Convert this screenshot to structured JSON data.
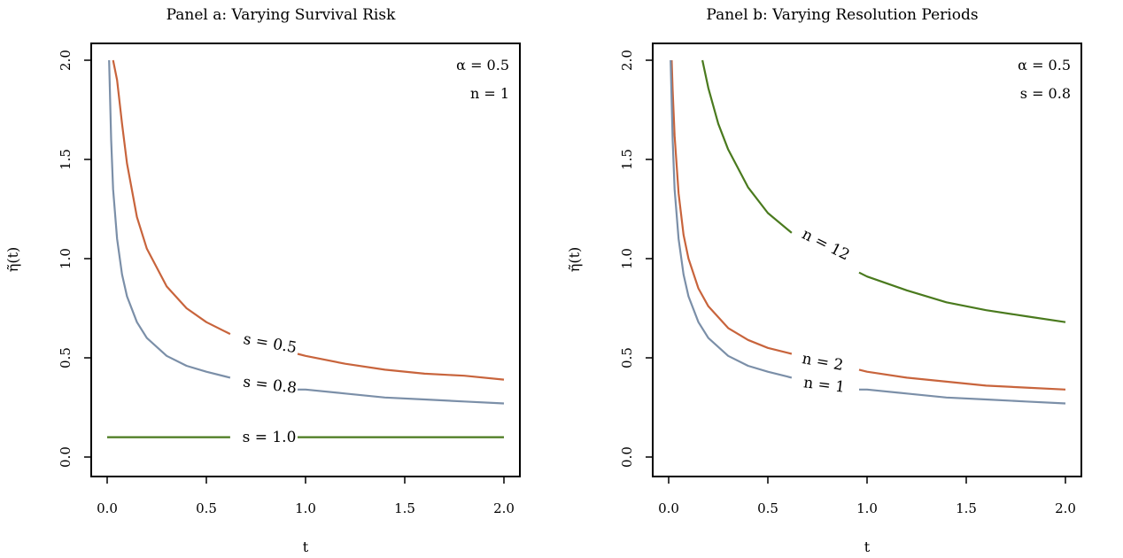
{
  "chart_data": [
    {
      "type": "line",
      "title": "Panel a: Varying Survival Risk",
      "xlabel": "t",
      "ylabel": "η̃(t)",
      "xlim": [
        0.0,
        2.0
      ],
      "ylim": [
        0.0,
        2.0
      ],
      "x_ticks": [
        "0.0",
        "0.5",
        "1.0",
        "1.5",
        "2.0"
      ],
      "y_ticks": [
        "0.0",
        "0.5",
        "1.0",
        "1.5",
        "2.0"
      ],
      "annotations": [
        "α = 0.5",
        "n = 1"
      ],
      "series": [
        {
          "label": "s = 0.5",
          "color": "#c8643c",
          "x": [
            0.03,
            0.05,
            0.075,
            0.1,
            0.15,
            0.2,
            0.3,
            0.4,
            0.5,
            0.6,
            0.62,
            0.96,
            1.0,
            1.2,
            1.4,
            1.6,
            1.8,
            2.0
          ],
          "y": [
            2.0,
            1.9,
            1.68,
            1.48,
            1.21,
            1.05,
            0.86,
            0.75,
            0.68,
            0.63,
            0.62,
            0.52,
            0.51,
            0.47,
            0.44,
            0.42,
            0.41,
            0.39
          ]
        },
        {
          "label": "s = 0.8",
          "color": "#7b8fa8",
          "x": [
            0.01,
            0.02,
            0.03,
            0.05,
            0.075,
            0.1,
            0.15,
            0.2,
            0.3,
            0.4,
            0.5,
            0.62,
            0.96,
            1.0,
            1.2,
            1.4,
            1.6,
            1.8,
            2.0
          ],
          "y": [
            2.0,
            1.6,
            1.35,
            1.1,
            0.92,
            0.81,
            0.68,
            0.6,
            0.51,
            0.46,
            0.43,
            0.4,
            0.34,
            0.34,
            0.32,
            0.3,
            0.29,
            0.28,
            0.27
          ]
        },
        {
          "label": "s = 1.0",
          "color": "#4a7a1e",
          "x": [
            0.0,
            0.62,
            0.96,
            2.0
          ],
          "y": [
            0.1,
            0.1,
            0.1,
            0.1
          ]
        }
      ],
      "label_gap": [
        0.62,
        0.96
      ]
    },
    {
      "type": "line",
      "title": "Panel b: Varying Resolution Periods",
      "xlabel": "t",
      "ylabel": "η̃(t)",
      "xlim": [
        0.0,
        2.0
      ],
      "ylim": [
        0.0,
        2.0
      ],
      "x_ticks": [
        "0.0",
        "0.5",
        "1.0",
        "1.5",
        "2.0"
      ],
      "y_ticks": [
        "0.0",
        "0.5",
        "1.0",
        "1.5",
        "2.0"
      ],
      "annotations": [
        "α = 0.5",
        "s = 0.8"
      ],
      "series": [
        {
          "label": "n = 12",
          "color": "#4a7a1e",
          "x": [
            0.17,
            0.2,
            0.25,
            0.3,
            0.4,
            0.5,
            0.62,
            0.96,
            1.0,
            1.2,
            1.4,
            1.6,
            1.8,
            2.0
          ],
          "y": [
            2.0,
            1.86,
            1.68,
            1.55,
            1.36,
            1.23,
            1.13,
            0.93,
            0.91,
            0.84,
            0.78,
            0.74,
            0.71,
            0.68
          ]
        },
        {
          "label": "n = 2",
          "color": "#c8643c",
          "x": [
            0.015,
            0.02,
            0.03,
            0.05,
            0.075,
            0.1,
            0.15,
            0.2,
            0.3,
            0.4,
            0.5,
            0.62,
            0.96,
            1.0,
            1.2,
            1.4,
            1.6,
            1.8,
            2.0
          ],
          "y": [
            2.0,
            1.85,
            1.62,
            1.33,
            1.12,
            1.0,
            0.85,
            0.76,
            0.65,
            0.59,
            0.55,
            0.52,
            0.44,
            0.43,
            0.4,
            0.38,
            0.36,
            0.35,
            0.34
          ]
        },
        {
          "label": "n = 1",
          "color": "#7b8fa8",
          "x": [
            0.01,
            0.02,
            0.03,
            0.05,
            0.075,
            0.1,
            0.15,
            0.2,
            0.3,
            0.4,
            0.5,
            0.62,
            0.96,
            1.0,
            1.2,
            1.4,
            1.6,
            1.8,
            2.0
          ],
          "y": [
            2.0,
            1.6,
            1.35,
            1.1,
            0.92,
            0.81,
            0.68,
            0.6,
            0.51,
            0.46,
            0.43,
            0.4,
            0.34,
            0.34,
            0.32,
            0.3,
            0.29,
            0.28,
            0.27
          ]
        }
      ],
      "label_gap": [
        0.62,
        0.96
      ]
    }
  ]
}
